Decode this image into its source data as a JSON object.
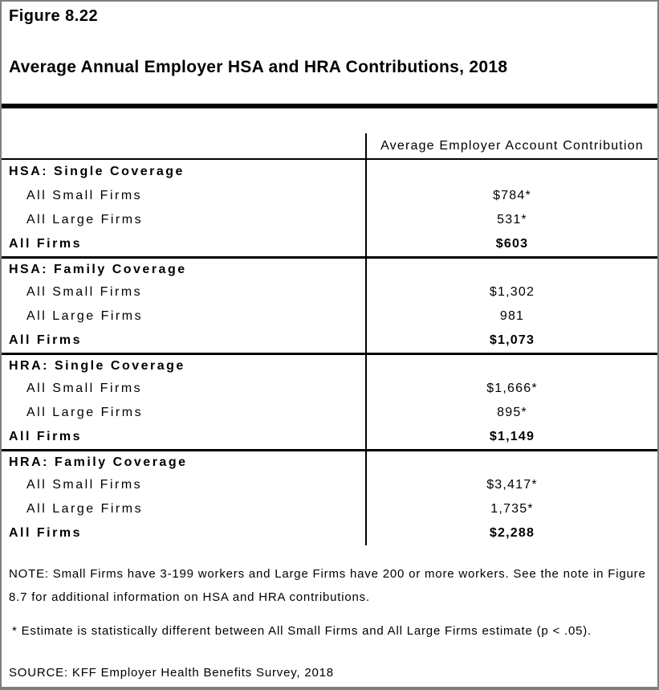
{
  "page": {
    "figure_label": "Figure 8.22",
    "title": "Average Annual Employer HSA and HRA Contributions, 2018"
  },
  "table": {
    "value_column_header": "Average Employer Account Contribution",
    "sections": [
      {
        "header": "HSA: Single Coverage",
        "rows": [
          {
            "label": "All Small Firms",
            "value": "$784*"
          },
          {
            "label": "All Large Firms",
            "value": "531*"
          },
          {
            "label": "All Firms",
            "value": "$603"
          }
        ]
      },
      {
        "header": "HSA: Family Coverage",
        "rows": [
          {
            "label": "All Small Firms",
            "value": "$1,302"
          },
          {
            "label": "All Large Firms",
            "value": "981"
          },
          {
            "label": "All Firms",
            "value": "$1,073"
          }
        ]
      },
      {
        "header": "HRA: Single Coverage",
        "rows": [
          {
            "label": "All Small Firms",
            "value": "$1,666*"
          },
          {
            "label": "All Large Firms",
            "value": "895*"
          },
          {
            "label": "All Firms",
            "value": "$1,149"
          }
        ]
      },
      {
        "header": "HRA: Family Coverage",
        "rows": [
          {
            "label": "All Small Firms",
            "value": "$3,417*"
          },
          {
            "label": "All Large Firms",
            "value": "1,735*"
          },
          {
            "label": "All Firms",
            "value": "$2,288"
          }
        ]
      }
    ]
  },
  "notes": {
    "note": "NOTE: Small Firms have 3-199 workers and Large Firms have 200 or more workers. See the note in Figure 8.7 for additional information on HSA and HRA contributions.",
    "asterisk_note": "* Estimate is statistically different between All Small Firms and All Large Firms estimate (p < .05).",
    "source": "SOURCE: KFF Employer Health Benefits Survey, 2018"
  }
}
